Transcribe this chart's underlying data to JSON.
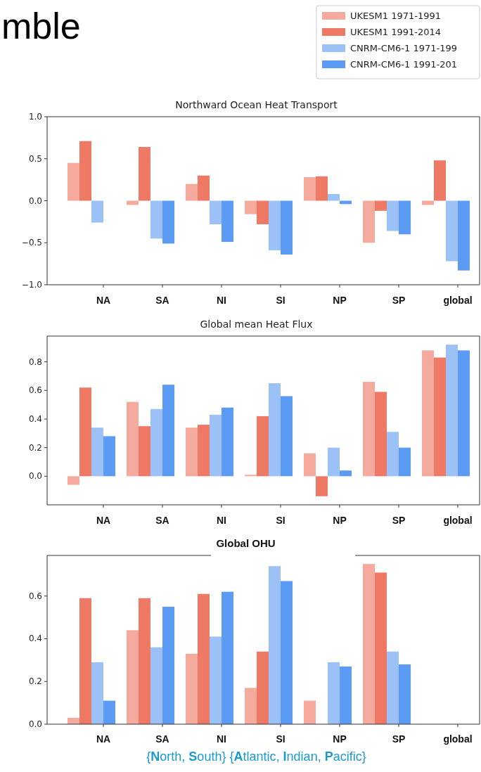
{
  "chart_data": [
    {
      "type": "bar",
      "title": "Northward Ocean Heat Transport",
      "annotations": [
        "mble"
      ],
      "legend": "top right",
      "categories": [
        "NA",
        "SA",
        "NI",
        "SI",
        "NP",
        "SP",
        "global"
      ],
      "ylim": [
        -1.0,
        1.0
      ],
      "yticks": [
        {
          "value": -1.0,
          "label": "−1.0"
        },
        {
          "value": -0.5,
          "label": "−0.5"
        },
        {
          "value": 0,
          "label": "0.0"
        },
        {
          "value": 0.5,
          "label": "0.5"
        },
        {
          "value": 1.0,
          "label": "1.0"
        }
      ],
      "series": [
        {
          "name": "UKESM1 1971-1991",
          "color": "#f6aa9d",
          "values": [
            0.45,
            -0.05,
            0.2,
            -0.16,
            0.28,
            -0.5,
            -0.05
          ]
        },
        {
          "name": "UKESM1 1991-2014",
          "color": "#ee7a66",
          "values": [
            0.71,
            0.64,
            0.3,
            -0.28,
            0.29,
            -0.12,
            0.48
          ]
        },
        {
          "name": "CNRM-CM6-1 1971-199",
          "color": "#9cc1f7",
          "values": [
            -0.26,
            -0.45,
            -0.28,
            -0.59,
            0.08,
            -0.36,
            -0.72
          ]
        },
        {
          "name": "CNRM-CM6-1 1991-201",
          "color": "#5b9bf4",
          "values": [
            null,
            -0.51,
            -0.49,
            -0.64,
            -0.04,
            -0.4,
            -0.83
          ]
        }
      ]
    },
    {
      "type": "bar",
      "title": "Global mean Heat Flux",
      "categories": [
        "NA",
        "SA",
        "NI",
        "SI",
        "NP",
        "SP",
        "global"
      ],
      "ylim": [
        -0.2,
        0.98
      ],
      "yticks": [
        {
          "value": 0,
          "label": "0.0"
        },
        {
          "value": 0.2,
          "label": "0.2"
        },
        {
          "value": 0.4,
          "label": "0.4"
        },
        {
          "value": 0.6,
          "label": "0.6"
        },
        {
          "value": 0.8,
          "label": "0.8"
        }
      ],
      "series": [
        {
          "color": "#f6aa9d",
          "values": [
            -0.06,
            0.52,
            0.34,
            0.01,
            0.16,
            0.66,
            0.88
          ]
        },
        {
          "color": "#ee7a66",
          "values": [
            0.62,
            0.35,
            0.36,
            0.42,
            -0.14,
            0.59,
            0.83
          ]
        },
        {
          "color": "#9cc1f7",
          "values": [
            0.34,
            0.47,
            0.43,
            0.65,
            0.2,
            0.31,
            0.92
          ]
        },
        {
          "color": "#5b9bf4",
          "values": [
            0.28,
            0.64,
            0.48,
            0.56,
            0.04,
            0.2,
            0.88
          ]
        }
      ]
    },
    {
      "type": "bar",
      "title": "Global OHU",
      "annotations": [
        "{North, South} {Atlantic, Indian, Pacific}"
      ],
      "categories": [
        "NA",
        "SA",
        "NI",
        "SI",
        "NP",
        "SP",
        "global"
      ],
      "ylim": [
        0,
        0.79
      ],
      "yticks": [
        {
          "value": 0,
          "label": "0.0"
        },
        {
          "value": 0.2,
          "label": "0.2"
        },
        {
          "value": 0.4,
          "label": "0.4"
        },
        {
          "value": 0.6,
          "label": "0.6"
        }
      ],
      "series": [
        {
          "color": "#f6aa9d",
          "values": [
            0.03,
            0.44,
            0.33,
            0.17,
            0.11,
            0.75,
            null
          ]
        },
        {
          "color": "#ee7a66",
          "values": [
            0.59,
            0.59,
            0.61,
            0.34,
            null,
            0.71,
            null
          ]
        },
        {
          "color": "#9cc1f7",
          "values": [
            0.29,
            0.36,
            0.41,
            0.74,
            0.29,
            0.34,
            null
          ]
        },
        {
          "color": "#5b9bf4",
          "values": [
            0.11,
            0.55,
            0.62,
            0.67,
            0.27,
            0.28,
            null
          ]
        }
      ]
    }
  ]
}
